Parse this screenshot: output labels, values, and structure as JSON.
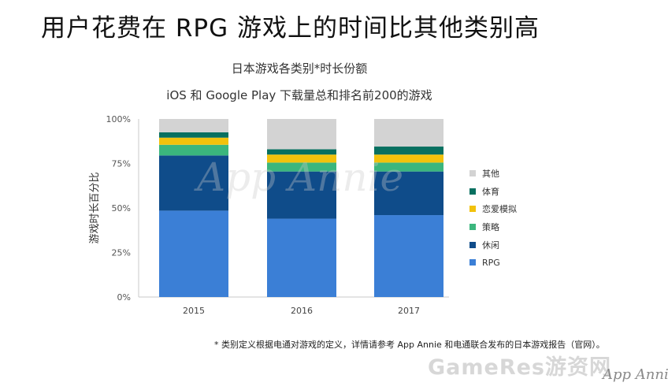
{
  "headline": "用户花费在 RPG 游戏上的时间比其他类别高",
  "chart_data": {
    "type": "bar",
    "stacked": true,
    "title": "日本游戏各类别*时长份额",
    "subtitle": "iOS 和 Google Play 下载量总和排名前200的游戏",
    "ylabel": "游戏时长百分比",
    "xlabel": "",
    "ylim": [
      0,
      100
    ],
    "yticks": [
      "0%",
      "25%",
      "50%",
      "75%",
      "100%"
    ],
    "categories": [
      "2015",
      "2016",
      "2017"
    ],
    "series": [
      {
        "name": "RPG",
        "color": "#3b7fd6",
        "values": [
          48.5,
          44,
          46
        ]
      },
      {
        "name": "休闲",
        "color": "#0f4c8a",
        "values": [
          31,
          26.5,
          24.5
        ]
      },
      {
        "name": "策略",
        "color": "#3bb67d",
        "values": [
          6,
          5,
          5
        ]
      },
      {
        "name": "恋爱模拟",
        "color": "#f2c20c",
        "values": [
          4,
          4.5,
          4.5
        ]
      },
      {
        "name": "体育",
        "color": "#087060",
        "values": [
          3,
          3,
          4.5
        ]
      },
      {
        "name": "其他",
        "color": "#d3d3d3",
        "values": [
          7.5,
          17,
          15.5
        ]
      }
    ],
    "grid": false,
    "legend": "right"
  },
  "footnote": "* 类别定义根据电通对游戏的定义，详情请参考 App Annie 和电通联合发布的日本游戏报告（官网）。",
  "watermarks": {
    "center": "App Annie",
    "gameres": "GameRes游资网",
    "appannie": "App Annie"
  }
}
